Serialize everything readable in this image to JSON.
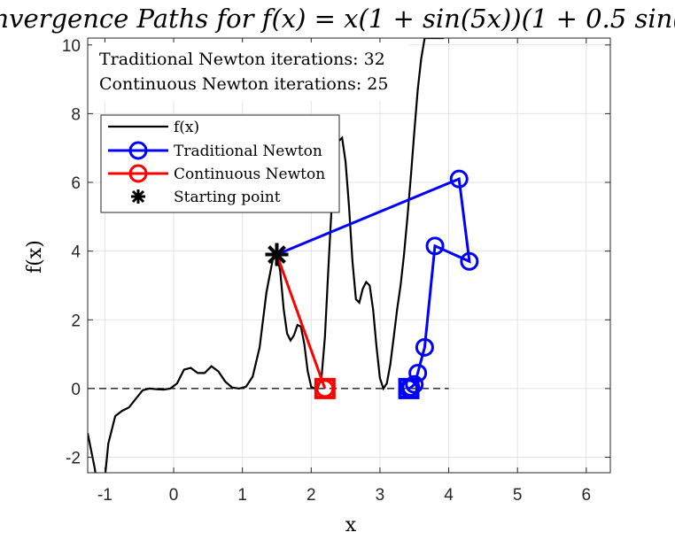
{
  "chart_data": {
    "type": "line",
    "title": "nvergence Paths for f(x) = x(1 + sin(5x))(1 + 0.5 sin(",
    "xlabel": "x",
    "ylabel": "f(x)",
    "xlim": [
      -1.25,
      6.35
    ],
    "ylim": [
      -2.45,
      10.2
    ],
    "xticks": [
      -1,
      0,
      1,
      2,
      3,
      4,
      5,
      6
    ],
    "yticks": [
      -2,
      0,
      2,
      4,
      6,
      8,
      10
    ],
    "grid": true,
    "legend_position": "top-left",
    "annotations": [
      "Traditional Newton iterations: 32",
      "Continuous Newton iterations: 25"
    ],
    "series": [
      {
        "name": "f(x)",
        "color": "#000000",
        "x": [
          -1.25,
          -1.15,
          -1.05,
          -0.95,
          -0.85,
          -0.75,
          -0.65,
          -0.55,
          -0.45,
          -0.35,
          -0.25,
          -0.15,
          -0.05,
          0.05,
          0.15,
          0.25,
          0.35,
          0.45,
          0.55,
          0.65,
          0.75,
          0.85,
          0.95,
          1.05,
          1.15,
          1.25,
          1.35,
          1.45,
          1.5,
          1.55,
          1.6,
          1.65,
          1.7,
          1.75,
          1.8,
          1.85,
          1.9,
          1.95,
          2.0,
          2.05,
          2.1,
          2.15,
          2.2,
          2.25,
          2.3,
          2.35,
          2.4,
          2.45,
          2.5,
          2.55,
          2.6,
          2.65,
          2.7,
          2.75,
          2.8,
          2.85,
          2.9,
          2.95,
          3.0,
          3.05,
          3.1,
          3.15,
          3.2,
          3.25,
          3.3,
          3.35,
          3.4,
          3.45,
          3.5,
          3.55,
          3.6,
          3.65,
          3.7,
          3.75,
          3.8,
          3.85,
          3.9,
          3.93
        ],
        "y": [
          -1.3,
          -2.3,
          -3.6,
          -1.6,
          -0.8,
          -0.65,
          -0.55,
          -0.3,
          -0.05,
          0.0,
          -0.02,
          -0.03,
          0.0,
          0.15,
          0.55,
          0.6,
          0.45,
          0.45,
          0.65,
          0.5,
          0.2,
          0.03,
          0.0,
          0.05,
          0.35,
          1.2,
          2.8,
          3.85,
          3.95,
          3.4,
          2.3,
          1.6,
          1.4,
          1.55,
          1.85,
          1.8,
          1.3,
          0.5,
          0.05,
          0.0,
          0.05,
          0.3,
          1.5,
          3.5,
          5.4,
          6.6,
          7.2,
          7.3,
          6.6,
          5.3,
          3.7,
          2.6,
          2.5,
          2.9,
          3.1,
          3.0,
          2.3,
          1.2,
          0.3,
          0.0,
          0.15,
          0.7,
          1.5,
          2.3,
          3.0,
          3.9,
          5.0,
          6.2,
          7.5,
          8.7,
          9.6,
          10.2,
          10.2,
          10.2,
          10.2,
          10.2,
          10.2,
          10.2
        ]
      },
      {
        "name": "Traditional Newton",
        "color": "#0000ff",
        "x": [
          1.5,
          4.15,
          4.3,
          3.8,
          3.65,
          3.55,
          3.5,
          3.45,
          3.42
        ],
        "y": [
          3.9,
          6.1,
          3.7,
          4.15,
          1.2,
          0.45,
          0.12,
          0.03,
          0.0
        ]
      },
      {
        "name": "Continuous Newton",
        "color": "#ff0000",
        "x": [
          1.5,
          2.2
        ],
        "y": [
          3.9,
          0.0
        ]
      },
      {
        "name": "Starting point",
        "color": "#000000",
        "x": [
          1.5
        ],
        "y": [
          3.9
        ]
      }
    ],
    "final_points": [
      {
        "series": "Traditional Newton",
        "x": 3.42,
        "y": 0.0,
        "color": "#0000ff"
      },
      {
        "series": "Continuous Newton",
        "x": 2.2,
        "y": 0.0,
        "color": "#ff0000"
      }
    ],
    "reference_line": {
      "y": 0,
      "x_from": -1.25,
      "x_to": 4.0,
      "style": "dashed",
      "color": "#000000"
    }
  }
}
